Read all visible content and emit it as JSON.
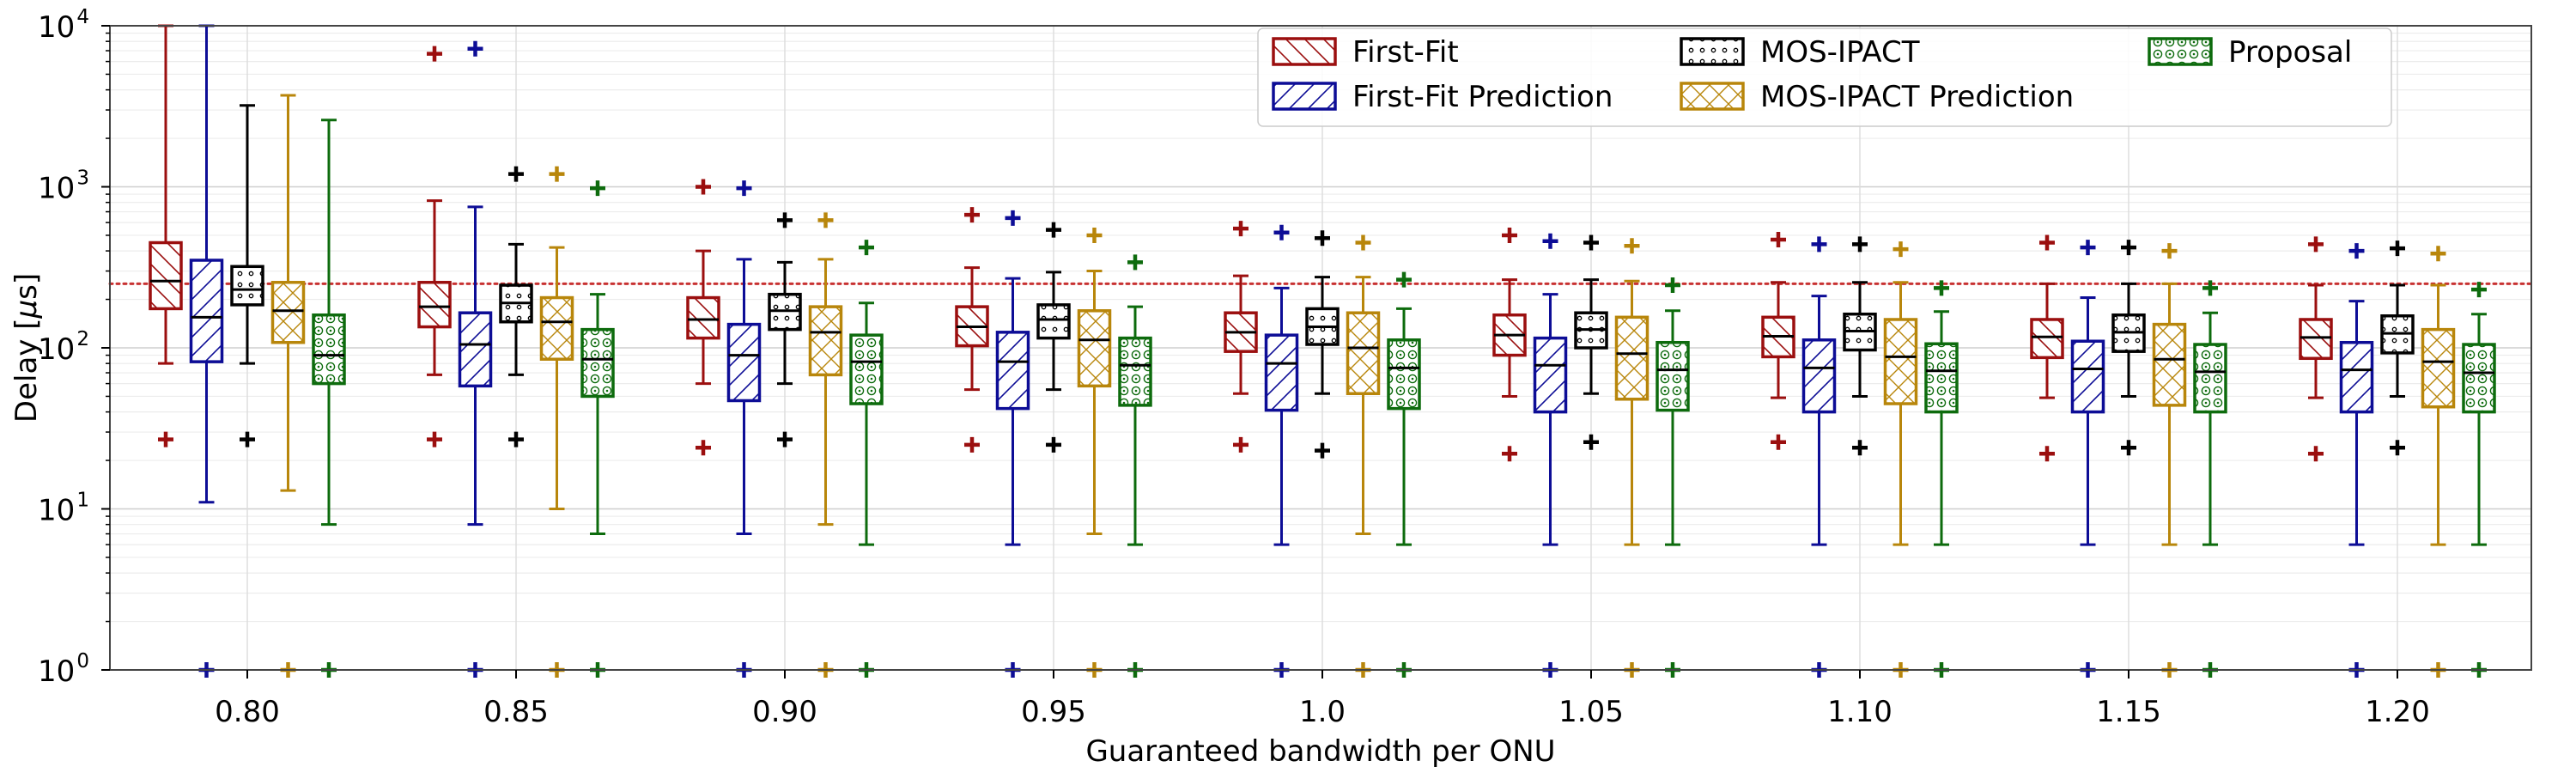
{
  "chart_data": {
    "type": "boxplot",
    "title": "",
    "xlabel": "Guaranteed bandwidth per ONU",
    "ylabel_prefix": "Delay [",
    "ylabel_mu": "μ",
    "ylabel_suffix": "s]",
    "yscale": "log",
    "ylim": [
      1,
      10000
    ],
    "ytick_values": [
      1,
      10,
      100,
      1000,
      10000
    ],
    "ytick_exponents": [
      "0",
      "1",
      "2",
      "3",
      "4"
    ],
    "ytick_base": "10",
    "reference_line": {
      "value": 250,
      "style": "dotted",
      "color": "#c83232"
    },
    "grid": true,
    "legend_position": "top-right",
    "categories": [
      "0.80",
      "0.85",
      "0.90",
      "0.95",
      "1.0",
      "1.05",
      "1.10",
      "1.15",
      "1.20"
    ],
    "series": [
      {
        "name": "First-Fit",
        "color": "#9b0f0f",
        "hatch": "back-diagonal",
        "stats": [
          {
            "whislo": 80,
            "q1": 175,
            "med": 260,
            "q3": 450,
            "whishi": 10000,
            "fliers": [
              27
            ]
          },
          {
            "whislo": 68,
            "q1": 135,
            "med": 180,
            "q3": 255,
            "whishi": 820,
            "fliers": [
              27,
              6700
            ]
          },
          {
            "whislo": 60,
            "q1": 115,
            "med": 150,
            "q3": 205,
            "whishi": 400,
            "fliers": [
              24,
              1000
            ]
          },
          {
            "whislo": 55,
            "q1": 103,
            "med": 135,
            "q3": 180,
            "whishi": 315,
            "fliers": [
              25,
              670
            ]
          },
          {
            "whislo": 52,
            "q1": 95,
            "med": 125,
            "q3": 165,
            "whishi": 280,
            "fliers": [
              25,
              550
            ]
          },
          {
            "whislo": 50,
            "q1": 90,
            "med": 120,
            "q3": 160,
            "whishi": 265,
            "fliers": [
              22,
              500
            ]
          },
          {
            "whislo": 49,
            "q1": 88,
            "med": 118,
            "q3": 155,
            "whishi": 255,
            "fliers": [
              26,
              470
            ]
          },
          {
            "whislo": 49,
            "q1": 87,
            "med": 117,
            "q3": 150,
            "whishi": 250,
            "fliers": [
              22,
              450
            ]
          },
          {
            "whislo": 49,
            "q1": 86,
            "med": 116,
            "q3": 150,
            "whishi": 245,
            "fliers": [
              22,
              440
            ]
          }
        ]
      },
      {
        "name": "First-Fit Prediction",
        "color": "#0d0d96",
        "hatch": "forward-diagonal",
        "stats": [
          {
            "whislo": 11,
            "q1": 82,
            "med": 155,
            "q3": 350,
            "whishi": 10000,
            "fliers": [
              1
            ]
          },
          {
            "whislo": 8,
            "q1": 58,
            "med": 105,
            "q3": 165,
            "whishi": 750,
            "fliers": [
              1,
              7200
            ]
          },
          {
            "whislo": 7,
            "q1": 47,
            "med": 90,
            "q3": 140,
            "whishi": 355,
            "fliers": [
              1,
              980
            ]
          },
          {
            "whislo": 6,
            "q1": 42,
            "med": 82,
            "q3": 125,
            "whishi": 270,
            "fliers": [
              1,
              640
            ]
          },
          {
            "whislo": 6,
            "q1": 41,
            "med": 80,
            "q3": 120,
            "whishi": 235,
            "fliers": [
              1,
              520
            ]
          },
          {
            "whislo": 6,
            "q1": 40,
            "med": 78,
            "q3": 115,
            "whishi": 215,
            "fliers": [
              1,
              460
            ]
          },
          {
            "whislo": 6,
            "q1": 40,
            "med": 75,
            "q3": 112,
            "whishi": 210,
            "fliers": [
              1,
              440
            ]
          },
          {
            "whislo": 6,
            "q1": 40,
            "med": 74,
            "q3": 110,
            "whishi": 205,
            "fliers": [
              1,
              420
            ]
          },
          {
            "whislo": 6,
            "q1": 40,
            "med": 73,
            "q3": 108,
            "whishi": 195,
            "fliers": [
              1,
              400
            ]
          }
        ]
      },
      {
        "name": "MOS-IPACT",
        "color": "#000000",
        "hatch": "small-circles",
        "stats": [
          {
            "whislo": 80,
            "q1": 185,
            "med": 230,
            "q3": 320,
            "whishi": 3200,
            "fliers": [
              27
            ]
          },
          {
            "whislo": 68,
            "q1": 145,
            "med": 190,
            "q3": 245,
            "whishi": 440,
            "fliers": [
              27,
              1200
            ]
          },
          {
            "whislo": 60,
            "q1": 130,
            "med": 170,
            "q3": 215,
            "whishi": 340,
            "fliers": [
              27,
              620
            ]
          },
          {
            "whislo": 55,
            "q1": 115,
            "med": 150,
            "q3": 185,
            "whishi": 295,
            "fliers": [
              25,
              540
            ]
          },
          {
            "whislo": 52,
            "q1": 105,
            "med": 135,
            "q3": 175,
            "whishi": 275,
            "fliers": [
              23,
              480
            ]
          },
          {
            "whislo": 52,
            "q1": 100,
            "med": 130,
            "q3": 165,
            "whishi": 265,
            "fliers": [
              26,
              450
            ]
          },
          {
            "whislo": 50,
            "q1": 97,
            "med": 127,
            "q3": 162,
            "whishi": 255,
            "fliers": [
              24,
              440
            ]
          },
          {
            "whislo": 50,
            "q1": 95,
            "med": 125,
            "q3": 160,
            "whishi": 250,
            "fliers": [
              24,
              420
            ]
          },
          {
            "whislo": 50,
            "q1": 93,
            "med": 123,
            "q3": 158,
            "whishi": 245,
            "fliers": [
              24,
              415
            ]
          }
        ]
      },
      {
        "name": "MOS-IPACT Prediction",
        "color": "#b8860b",
        "hatch": "cross",
        "stats": [
          {
            "whislo": 13,
            "q1": 108,
            "med": 170,
            "q3": 255,
            "whishi": 3700,
            "fliers": [
              1
            ]
          },
          {
            "whislo": 10,
            "q1": 85,
            "med": 145,
            "q3": 205,
            "whishi": 420,
            "fliers": [
              1,
              1200
            ]
          },
          {
            "whislo": 8,
            "q1": 68,
            "med": 125,
            "q3": 180,
            "whishi": 355,
            "fliers": [
              1,
              620
            ]
          },
          {
            "whislo": 7,
            "q1": 58,
            "med": 112,
            "q3": 170,
            "whishi": 300,
            "fliers": [
              1,
              500
            ]
          },
          {
            "whislo": 7,
            "q1": 52,
            "med": 100,
            "q3": 165,
            "whishi": 275,
            "fliers": [
              1,
              450
            ]
          },
          {
            "whislo": 6,
            "q1": 48,
            "med": 92,
            "q3": 155,
            "whishi": 260,
            "fliers": [
              1,
              430
            ]
          },
          {
            "whislo": 6,
            "q1": 45,
            "med": 88,
            "q3": 150,
            "whishi": 255,
            "fliers": [
              1,
              410
            ]
          },
          {
            "whislo": 6,
            "q1": 44,
            "med": 85,
            "q3": 140,
            "whishi": 250,
            "fliers": [
              1,
              400
            ]
          },
          {
            "whislo": 6,
            "q1": 43,
            "med": 82,
            "q3": 130,
            "whishi": 245,
            "fliers": [
              1,
              385
            ]
          }
        ]
      },
      {
        "name": "Proposal",
        "color": "#0d6b0d",
        "hatch": "rings",
        "stats": [
          {
            "whislo": 8,
            "q1": 60,
            "med": 90,
            "q3": 160,
            "whishi": 2600,
            "fliers": [
              1
            ]
          },
          {
            "whislo": 7,
            "q1": 50,
            "med": 85,
            "q3": 130,
            "whishi": 215,
            "fliers": [
              1,
              980
            ]
          },
          {
            "whislo": 6,
            "q1": 45,
            "med": 82,
            "q3": 120,
            "whishi": 190,
            "fliers": [
              1,
              420
            ]
          },
          {
            "whislo": 6,
            "q1": 44,
            "med": 78,
            "q3": 115,
            "whishi": 180,
            "fliers": [
              1,
              340
            ]
          },
          {
            "whislo": 6,
            "q1": 42,
            "med": 75,
            "q3": 112,
            "whishi": 175,
            "fliers": [
              1,
              265
            ]
          },
          {
            "whislo": 6,
            "q1": 41,
            "med": 73,
            "q3": 108,
            "whishi": 170,
            "fliers": [
              1,
              245
            ]
          },
          {
            "whislo": 6,
            "q1": 40,
            "med": 72,
            "q3": 106,
            "whishi": 168,
            "fliers": [
              1,
              235
            ]
          },
          {
            "whislo": 6,
            "q1": 40,
            "med": 71,
            "q3": 105,
            "whishi": 165,
            "fliers": [
              1,
              235
            ]
          },
          {
            "whislo": 6,
            "q1": 40,
            "med": 70,
            "q3": 105,
            "whishi": 162,
            "fliers": [
              1,
              230
            ]
          }
        ]
      }
    ]
  }
}
